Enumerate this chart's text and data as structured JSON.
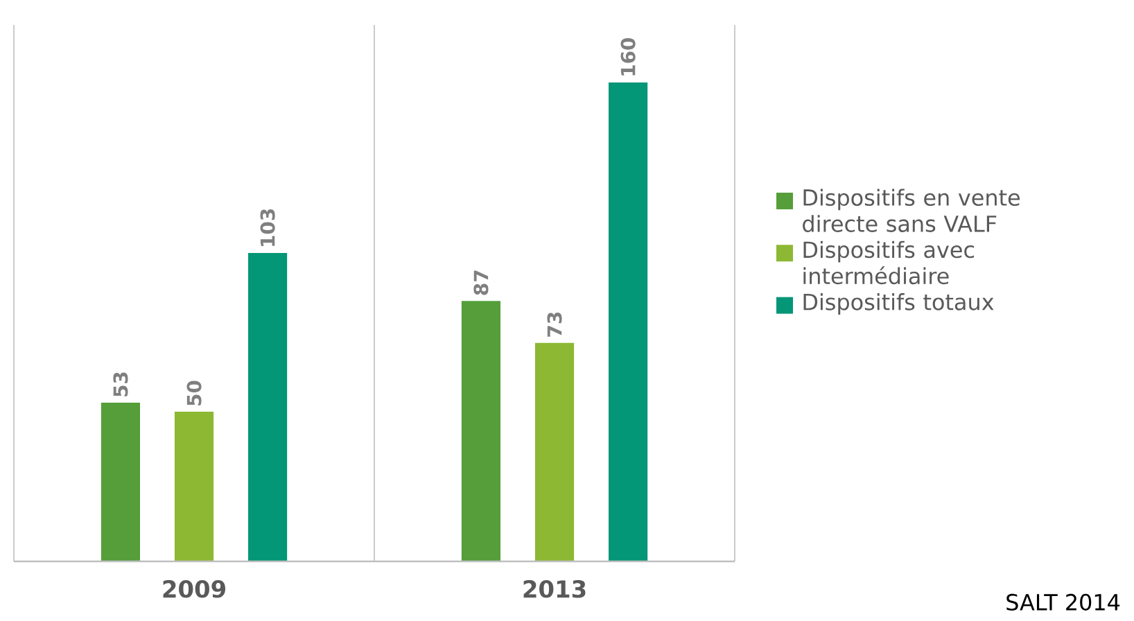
{
  "chart_data": {
    "type": "bar",
    "categories": [
      "2009",
      "2013"
    ],
    "series": [
      {
        "name": "Dispositifs en vente directe sans VALF",
        "color": "#559e3a",
        "values": [
          53,
          87
        ]
      },
      {
        "name": "Dispositifs avec intermédiaire",
        "color": "#8cb833",
        "values": [
          50,
          73
        ]
      },
      {
        "name": "Dispositifs totaux",
        "color": "#039677",
        "values": [
          103,
          160
        ]
      }
    ],
    "data_labels": true,
    "legend": "right",
    "annotations": [
      "SALT 2014"
    ]
  }
}
